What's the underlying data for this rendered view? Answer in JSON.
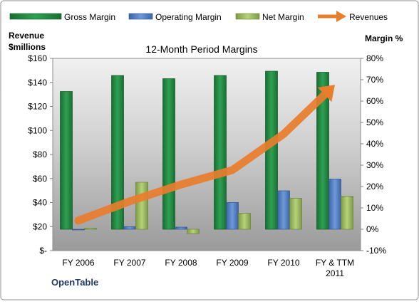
{
  "chart_data": {
    "type": "bar",
    "title": "12-Month Period Margins",
    "categories": [
      "FY 2006",
      "FY 2007",
      "FY 2008",
      "FY 2009",
      "FY 2010",
      "FY & TTM 2011"
    ],
    "left_axis": {
      "label": "Revenue $millions",
      "label_lines": [
        "Revenue",
        "$millions"
      ],
      "range": [
        0,
        160
      ],
      "tick_values": [
        0,
        20,
        40,
        60,
        80,
        100,
        120,
        140,
        160
      ],
      "tick_labels": [
        "$-",
        "$20",
        "$40",
        "$60",
        "$80",
        "$100",
        "$120",
        "$140",
        "$160"
      ]
    },
    "right_axis": {
      "label": "Margin %",
      "range": [
        -10,
        80
      ],
      "tick_values": [
        -10,
        0,
        10,
        20,
        30,
        40,
        50,
        60,
        70,
        80
      ],
      "tick_labels": [
        "-10%",
        "0%",
        "10%",
        "20%",
        "30%",
        "40%",
        "50%",
        "60%",
        "70%",
        "80%"
      ]
    },
    "series": [
      {
        "name": "Gross Margin",
        "kind": "bar",
        "axis": "right",
        "color": "#1f8a3f",
        "values": [
          64.5,
          72,
          70.5,
          72,
          74,
          73.5
        ]
      },
      {
        "name": "Operating Margin",
        "kind": "bar",
        "axis": "right",
        "color": "#4a7bc8",
        "values": [
          -0.3,
          1.2,
          1,
          12.5,
          18,
          23.5
        ]
      },
      {
        "name": "Net Margin",
        "kind": "bar",
        "axis": "right",
        "color": "#9bbb59",
        "values": [
          0.5,
          22,
          -2,
          7.5,
          14.5,
          15.5
        ]
      },
      {
        "name": "Revenues",
        "kind": "line",
        "axis": "left",
        "color": "#e87d2c",
        "values": [
          25,
          41,
          55,
          67,
          97,
          138
        ]
      }
    ],
    "legend_position": "top",
    "grid": false,
    "footer_label": "OpenTable"
  }
}
